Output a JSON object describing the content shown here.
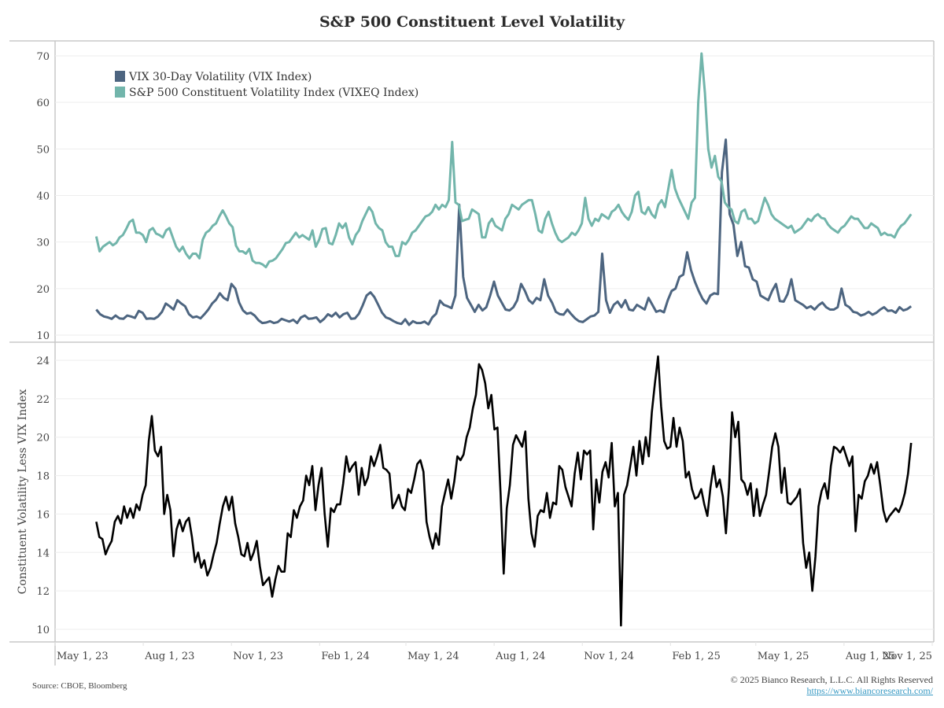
{
  "chart_data": {
    "title": "S&P 500 Constituent Level Volatility",
    "source": "Source: CBOE, Bloomberg",
    "copyright": "© 2025 Bianco Research, L.L.C. All Rights Reserved",
    "url": "https://www.biancoresearch.com/",
    "x_axis": {
      "type": "date",
      "range": [
        "2023-05-01",
        "2025-11-01"
      ],
      "ticks": [
        {
          "date": "2023-05-01",
          "label": "May 1, 23"
        },
        {
          "date": "2023-08-01",
          "label": "Aug 1, 23"
        },
        {
          "date": "2023-11-01",
          "label": "Nov 1, 23"
        },
        {
          "date": "2024-02-01",
          "label": "Feb 1, 24"
        },
        {
          "date": "2024-05-01",
          "label": "May 1, 24"
        },
        {
          "date": "2024-08-01",
          "label": "Aug 1, 24"
        },
        {
          "date": "2024-11-01",
          "label": "Nov 1, 24"
        },
        {
          "date": "2025-02-01",
          "label": "Feb 1, 25"
        },
        {
          "date": "2025-05-01",
          "label": "May 1, 25"
        },
        {
          "date": "2025-08-01",
          "label": "Aug 1, 25"
        },
        {
          "date": "2025-11-01",
          "label": "Nov 1, 25"
        }
      ],
      "data_start": "2023-06-13",
      "data_end": "2025-10-10"
    },
    "panels": [
      {
        "type": "line",
        "ylabel": "",
        "ylim": [
          10,
          70
        ],
        "yticks": [
          10,
          20,
          30,
          40,
          50,
          60,
          70
        ],
        "grid": true,
        "legend": "top-left",
        "series": [
          {
            "name": "VIX 30-Day Volatility (VIX Index)",
            "color": "#4d6580",
            "values": [
              15.5,
              14.5,
              14.0,
              13.8,
              13.5,
              14.2,
              13.6,
              13.5,
              14.2,
              14.0,
              13.7,
              15.2,
              14.8,
              13.5,
              13.6,
              13.5,
              14.0,
              15.0,
              16.8,
              16.2,
              15.5,
              17.5,
              16.8,
              16.2,
              14.5,
              13.8,
              14.0,
              13.6,
              14.5,
              15.5,
              16.8,
              17.6,
              19.0,
              18.0,
              17.5,
              21.0,
              20.0,
              17.0,
              15.3,
              14.6,
              14.8,
              14.2,
              13.2,
              12.6,
              12.7,
              13.0,
              12.6,
              12.8,
              13.5,
              13.2,
              12.9,
              13.3,
              12.6,
              13.8,
              14.2,
              13.5,
              13.6,
              13.8,
              12.8,
              13.5,
              14.5,
              14.0,
              14.8,
              13.8,
              14.5,
              14.8,
              13.5,
              13.6,
              14.6,
              16.4,
              18.5,
              19.2,
              18.2,
              16.5,
              14.8,
              13.8,
              13.5,
              13.0,
              12.6,
              12.4,
              13.4,
              12.2,
              13.0,
              12.6,
              12.6,
              12.9,
              12.3,
              13.8,
              14.6,
              17.4,
              16.5,
              16.2,
              15.8,
              18.5,
              38.0,
              22.5,
              18.0,
              16.5,
              15.0,
              16.5,
              15.3,
              16.0,
              18.5,
              21.5,
              18.5,
              17.0,
              15.5,
              15.3,
              16.0,
              17.5,
              21.0,
              19.5,
              17.5,
              16.8,
              18.0,
              17.5,
              22.0,
              18.5,
              17.0,
              15.0,
              14.5,
              14.4,
              15.5,
              14.5,
              13.6,
              13.0,
              12.8,
              13.4,
              14.0,
              14.2,
              15.0,
              27.5,
              17.5,
              14.8,
              16.5,
              17.2,
              16.0,
              17.5,
              15.5,
              15.3,
              16.5,
              16.0,
              15.5,
              18.0,
              16.5,
              15.0,
              15.3,
              14.9,
              17.5,
              19.5,
              20.0,
              22.5,
              23.0,
              27.8,
              24.0,
              21.5,
              19.5,
              17.8,
              16.8,
              18.5,
              19.0,
              18.8,
              45.0,
              52.0,
              36.0,
              33.7,
              27.0,
              30.0,
              24.8,
              24.5,
              22.0,
              21.5,
              18.5,
              18.0,
              17.5,
              19.5,
              21.0,
              17.3,
              17.2,
              18.8,
              22.0,
              17.5,
              17.0,
              16.5,
              15.8,
              16.2,
              15.5,
              16.4,
              17.0,
              16.0,
              15.5,
              15.5,
              16.0,
              20.0,
              16.5,
              16.0,
              15.0,
              14.8,
              14.2,
              14.5,
              15.0,
              14.4,
              14.8,
              15.5,
              16.0,
              15.2,
              15.3,
              14.8,
              16.0,
              15.3,
              15.6,
              16.2
            ]
          },
          {
            "name": "S&P 500 Constituent Volatility Index (VIXEQ Index)",
            "color": "#72b5ab",
            "values": [
              31.2,
              28.0,
              29.0,
              29.5,
              30.0,
              29.3,
              29.8,
              31.0,
              31.5,
              32.8,
              34.3,
              34.8,
              32.0,
              32.0,
              31.5,
              30.0,
              32.5,
              33.0,
              31.8,
              31.5,
              31.0,
              32.5,
              33.0,
              31.0,
              29.0,
              28.0,
              29.0,
              27.5,
              26.5,
              27.5,
              27.5,
              26.5,
              30.5,
              32.0,
              32.5,
              33.5,
              34.0,
              35.5,
              36.8,
              35.5,
              34.0,
              33.2,
              29.2,
              28.0,
              28.0,
              27.5,
              28.5,
              26.0,
              25.5,
              25.5,
              25.2,
              24.6,
              25.8,
              26.0,
              26.5,
              27.5,
              28.5,
              29.8,
              30.0,
              31.0,
              32.0,
              31.0,
              31.5,
              31.0,
              30.5,
              32.5,
              29.0,
              30.5,
              32.8,
              33.0,
              29.8,
              29.5,
              31.5,
              34.0,
              33.0,
              34.0,
              31.0,
              29.5,
              31.5,
              32.5,
              34.5,
              36.0,
              37.5,
              36.5,
              34.0,
              33.0,
              32.5,
              30.0,
              29.0,
              29.0,
              27.0,
              27.0,
              30.0,
              29.5,
              30.5,
              32.0,
              32.5,
              33.5,
              34.5,
              35.5,
              35.8,
              36.5,
              38.0,
              37.0,
              38.0,
              37.5,
              39.0,
              51.5,
              38.5,
              38.0,
              34.5,
              34.8,
              35.0,
              37.0,
              36.5,
              36.0,
              31.0,
              31.0,
              34.0,
              35.0,
              33.5,
              33.0,
              32.5,
              35.0,
              36.0,
              38.0,
              37.5,
              37.0,
              38.0,
              38.5,
              39.0,
              39.0,
              36.0,
              32.5,
              32.0,
              35.0,
              36.5,
              34.0,
              32.0,
              30.5,
              30.0,
              30.5,
              31.0,
              32.0,
              31.5,
              32.5,
              34.0,
              39.5,
              35.0,
              33.5,
              35.0,
              34.5,
              36.0,
              35.5,
              35.0,
              36.5,
              37.0,
              38.0,
              36.5,
              35.5,
              34.8,
              36.5,
              40.0,
              40.8,
              36.5,
              36.0,
              37.5,
              36.0,
              35.2,
              38.0,
              39.0,
              37.5,
              41.5,
              45.5,
              41.5,
              39.5,
              38.0,
              36.5,
              35.0,
              38.5,
              39.5,
              60.0,
              70.5,
              62.0,
              50.0,
              46.0,
              48.5,
              44.0,
              43.0,
              38.5,
              37.5,
              37.0,
              34.5,
              34.0,
              36.5,
              37.0,
              35.0,
              35.0,
              34.0,
              34.5,
              37.0,
              39.5,
              38.0,
              36.0,
              35.0,
              34.5,
              34.0,
              33.5,
              33.0,
              33.5,
              32.0,
              32.5,
              33.0,
              34.0,
              35.0,
              34.5,
              35.5,
              36.0,
              35.2,
              35.0,
              33.8,
              33.0,
              32.5,
              32.0,
              33.0,
              33.5,
              34.5,
              35.5,
              35.0,
              35.0,
              34.0,
              33.0,
              33.0,
              34.0,
              33.5,
              33.0,
              31.5,
              32.0,
              31.5,
              31.5,
              31.0,
              32.5,
              33.5,
              34.0,
              35.0,
              36.0
            ]
          }
        ]
      },
      {
        "type": "line",
        "ylabel": "Constituent Volatility Less VIX Index",
        "ylim": [
          10,
          24.5
        ],
        "yticks": [
          10,
          12,
          14,
          16,
          18,
          20,
          22,
          24
        ],
        "grid": true,
        "series": [
          {
            "name": "Constituent Volatility Less VIX Index",
            "color": "#000000",
            "values": [
              15.6,
              14.8,
              14.7,
              13.9,
              14.3,
              14.6,
              15.6,
              15.9,
              15.5,
              16.4,
              15.8,
              16.3,
              15.8,
              16.5,
              16.2,
              17.0,
              17.5,
              19.8,
              21.1,
              19.3,
              19.0,
              19.5,
              16.0,
              17.0,
              16.2,
              13.8,
              15.2,
              15.7,
              15.1,
              15.6,
              15.8,
              14.8,
              13.5,
              14.0,
              13.2,
              13.6,
              12.8,
              13.2,
              13.9,
              14.5,
              15.5,
              16.4,
              16.9,
              16.2,
              16.9,
              15.5,
              14.8,
              13.9,
              13.8,
              14.5,
              13.6,
              14.0,
              14.6,
              13.3,
              12.3,
              12.5,
              12.7,
              11.7,
              12.6,
              13.3,
              13.0,
              13.0,
              15.0,
              14.8,
              16.2,
              15.8,
              16.4,
              16.7,
              18.0,
              17.5,
              18.5,
              16.2,
              17.5,
              18.4,
              16.0,
              14.3,
              16.3,
              16.1,
              16.5,
              16.5,
              17.6,
              19.0,
              18.2,
              18.5,
              18.7,
              17.0,
              18.4,
              17.5,
              17.9,
              19.0,
              18.5,
              19.0,
              19.6,
              18.4,
              18.3,
              18.1,
              16.3,
              16.6,
              17.0,
              16.4,
              16.2,
              17.3,
              17.1,
              17.8,
              18.6,
              18.8,
              18.2,
              15.6,
              14.8,
              14.2,
              15.0,
              14.4,
              16.4,
              17.1,
              17.8,
              16.8,
              17.7,
              19.0,
              18.8,
              19.1,
              20.0,
              20.5,
              21.5,
              22.2,
              23.8,
              23.5,
              22.8,
              21.5,
              22.2,
              20.4,
              20.5,
              17.0,
              12.9,
              16.3,
              17.5,
              19.6,
              20.1,
              19.8,
              19.5,
              20.3,
              16.8,
              15.0,
              14.3,
              15.9,
              16.2,
              16.1,
              17.1,
              15.8,
              16.6,
              16.5,
              18.5,
              18.3,
              17.4,
              16.9,
              16.4,
              18.1,
              19.2,
              17.8,
              19.3,
              19.1,
              19.3,
              15.2,
              17.8,
              16.6,
              18.2,
              18.7,
              17.9,
              19.7,
              16.4,
              17.1,
              10.2,
              17.0,
              17.5,
              18.5,
              19.5,
              18.0,
              19.8,
              18.6,
              20.0,
              19.0,
              21.3,
              22.8,
              24.2,
              21.6,
              19.8,
              19.4,
              19.5,
              21.0,
              19.5,
              20.5,
              19.8,
              17.9,
              18.2,
              17.3,
              16.8,
              16.9,
              17.3,
              16.5,
              15.9,
              17.4,
              18.5,
              17.4,
              17.8,
              16.9,
              15.0,
              17.4,
              21.3,
              20.0,
              20.8,
              17.8,
              17.6,
              17.0,
              17.6,
              15.9,
              17.3,
              15.9,
              16.5,
              17.0,
              18.2,
              19.5,
              20.2,
              19.5,
              17.1,
              18.4,
              16.6,
              16.5,
              16.7,
              16.9,
              17.3,
              14.5,
              13.2,
              14.0,
              12.0,
              13.8,
              16.4,
              17.2,
              17.6,
              16.8,
              18.5,
              19.5,
              19.4,
              19.2,
              19.5,
              19.0,
              18.5,
              19.0,
              15.1,
              17.0,
              16.8,
              17.7,
              18.0,
              18.6,
              18.1,
              18.7,
              17.5,
              16.2,
              15.6,
              15.9,
              16.1,
              16.3,
              16.1,
              16.5,
              17.1,
              18.1,
              19.7
            ]
          }
        ]
      }
    ]
  }
}
